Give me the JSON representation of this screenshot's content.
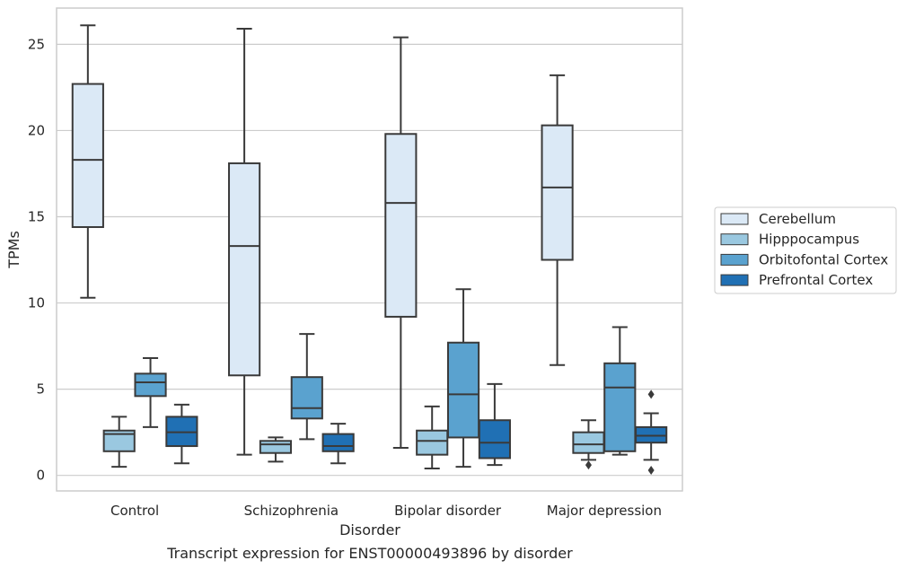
{
  "caption": "Transcript expression for ENST00000493896 by disorder",
  "chart_data": {
    "type": "box",
    "title": "",
    "xlabel": "Disorder",
    "ylabel": "TPMs",
    "ylim": [
      -0.9,
      27.1
    ],
    "yticks": [
      0,
      5,
      10,
      15,
      20,
      25
    ],
    "grid": "horizontal",
    "legend_position": "right",
    "categories": [
      "Control",
      "Schizophrenia",
      "Bipolar disorder",
      "Major depression"
    ],
    "series": [
      {
        "name": "Cerebellum",
        "color": "#dbe9f6",
        "boxes": [
          {
            "whislo": 10.3,
            "q1": 14.4,
            "med": 18.3,
            "q3": 22.7,
            "whishi": 26.1,
            "fliers": []
          },
          {
            "whislo": 1.2,
            "q1": 5.8,
            "med": 13.3,
            "q3": 18.1,
            "whishi": 25.9,
            "fliers": []
          },
          {
            "whislo": 1.6,
            "q1": 9.2,
            "med": 15.8,
            "q3": 19.8,
            "whishi": 25.4,
            "fliers": []
          },
          {
            "whislo": 6.4,
            "q1": 12.5,
            "med": 16.7,
            "q3": 20.3,
            "whishi": 23.2,
            "fliers": []
          }
        ]
      },
      {
        "name": "Hipppocampus",
        "color": "#9ac8e0",
        "boxes": [
          {
            "whislo": 0.5,
            "q1": 1.4,
            "med": 2.4,
            "q3": 2.6,
            "whishi": 3.4,
            "fliers": []
          },
          {
            "whislo": 0.8,
            "q1": 1.3,
            "med": 1.8,
            "q3": 2.0,
            "whishi": 2.2,
            "fliers": []
          },
          {
            "whislo": 0.4,
            "q1": 1.2,
            "med": 2.0,
            "q3": 2.6,
            "whishi": 4.0,
            "fliers": []
          },
          {
            "whislo": 0.9,
            "q1": 1.3,
            "med": 1.8,
            "q3": 2.5,
            "whishi": 3.2,
            "fliers": [
              0.6
            ]
          }
        ]
      },
      {
        "name": "Orbitofontal Cortex",
        "color": "#5aa2cf",
        "boxes": [
          {
            "whislo": 2.8,
            "q1": 4.6,
            "med": 5.4,
            "q3": 5.9,
            "whishi": 6.8,
            "fliers": []
          },
          {
            "whislo": 2.1,
            "q1": 3.3,
            "med": 3.9,
            "q3": 5.7,
            "whishi": 8.2,
            "fliers": []
          },
          {
            "whislo": 0.5,
            "q1": 2.2,
            "med": 4.7,
            "q3": 7.7,
            "whishi": 10.8,
            "fliers": []
          },
          {
            "whislo": 1.2,
            "q1": 1.4,
            "med": 5.1,
            "q3": 6.5,
            "whishi": 8.6,
            "fliers": []
          }
        ]
      },
      {
        "name": "Prefrontal Cortex",
        "color": "#2070b4",
        "boxes": [
          {
            "whislo": 0.7,
            "q1": 1.7,
            "med": 2.5,
            "q3": 3.4,
            "whishi": 4.1,
            "fliers": []
          },
          {
            "whislo": 0.7,
            "q1": 1.4,
            "med": 1.7,
            "q3": 2.4,
            "whishi": 3.0,
            "fliers": []
          },
          {
            "whislo": 0.6,
            "q1": 1.0,
            "med": 1.9,
            "q3": 3.2,
            "whishi": 5.3,
            "fliers": []
          },
          {
            "whislo": 0.9,
            "q1": 1.9,
            "med": 2.3,
            "q3": 2.8,
            "whishi": 3.6,
            "fliers": [
              4.7,
              0.3
            ]
          }
        ]
      }
    ]
  }
}
